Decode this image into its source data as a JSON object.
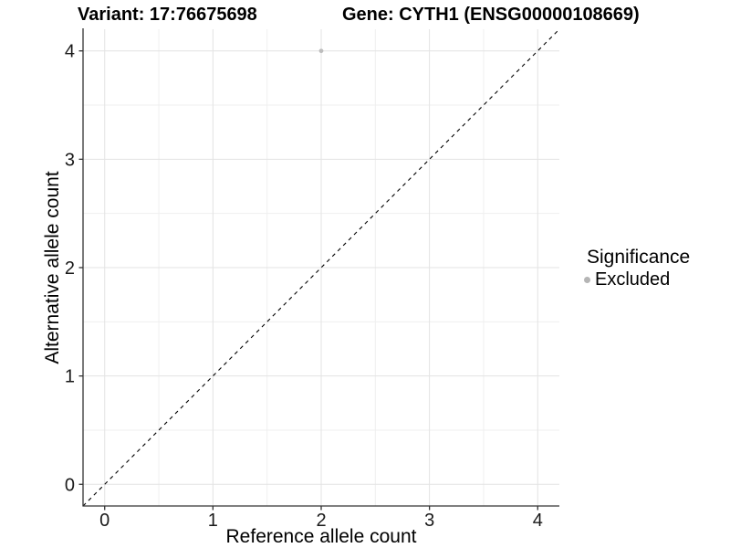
{
  "header": {
    "variant_title": "Variant: 17:76675698",
    "gene_title": "Gene: CYTH1 (ENSG00000108669)"
  },
  "chart_data": {
    "type": "scatter",
    "xlabel": "Reference allele count",
    "ylabel": "Alternative allele count",
    "xlim": [
      -0.2,
      4.2
    ],
    "ylim": [
      -0.2,
      4.2
    ],
    "xticks": [
      0,
      1,
      2,
      3,
      4
    ],
    "yticks": [
      0,
      1,
      2,
      3,
      4
    ],
    "xticks_minor": [
      0.5,
      1.5,
      2.5,
      3.5
    ],
    "yticks_minor": [
      0.5,
      1.5,
      2.5,
      3.5
    ],
    "grid": true,
    "identity_line": {
      "slope": 1,
      "intercept": 0,
      "style": "dashed",
      "color": "#000000"
    },
    "series": [
      {
        "name": "Excluded",
        "color": "#bdbdbd",
        "points": [
          {
            "x": 2,
            "y": 4
          }
        ]
      }
    ],
    "legend": {
      "title": "Significance",
      "position": "right",
      "entries": [
        {
          "label": "Excluded",
          "color": "#b5b5b5"
        }
      ]
    },
    "colors": {
      "grid_major": "#e3e3e3",
      "grid_minor": "#efefef",
      "axis_line": "#333333",
      "tick_label": "#1a1a1a",
      "point": "#bdbdbd"
    }
  }
}
